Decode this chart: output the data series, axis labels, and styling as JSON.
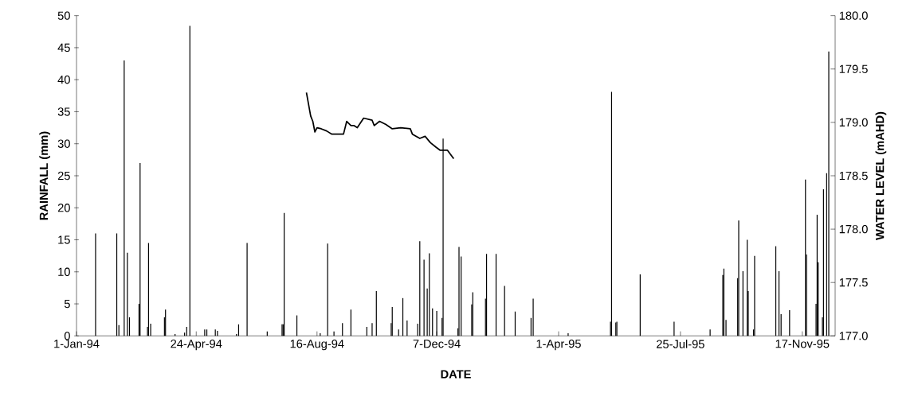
{
  "chart_data": {
    "type": "bar",
    "xlabel": "DATE",
    "ylabel": "RAINFALL (mm)",
    "y2label": "WATER LEVEL (mAHD)",
    "xlim": [
      "1994-01-01",
      "1995-12-18"
    ],
    "xticks": [
      {
        "value": "1994-01-01",
        "label": "1-Jan-94"
      },
      {
        "value": "1994-04-24",
        "label": "24-Apr-94"
      },
      {
        "value": "1994-08-16",
        "label": "16-Aug-94"
      },
      {
        "value": "1994-12-07",
        "label": "7-Dec-94"
      },
      {
        "value": "1995-04-01",
        "label": "1-Apr-95"
      },
      {
        "value": "1995-07-25",
        "label": "25-Jul-95"
      },
      {
        "value": "1995-11-17",
        "label": "17-Nov-95"
      }
    ],
    "ylim": [
      0,
      50
    ],
    "yticks": [
      0,
      5,
      10,
      15,
      20,
      25,
      30,
      35,
      40,
      45,
      50
    ],
    "y2lim": [
      177.0,
      180.0
    ],
    "y2ticks": [
      {
        "value": 177.0,
        "label": "177.0"
      },
      {
        "value": 177.5,
        "label": "177.5"
      },
      {
        "value": 178.0,
        "label": "178.0"
      },
      {
        "value": 178.5,
        "label": "178.5"
      },
      {
        "value": 179.0,
        "label": "179.0"
      },
      {
        "value": 179.5,
        "label": "179.5"
      },
      {
        "value": 180.0,
        "label": "180.0"
      }
    ],
    "grid": false,
    "series": [
      {
        "color": "#000000",
        "x": [
          "1994-01-19",
          "1994-02-08",
          "1994-02-10",
          "1994-02-15",
          "1994-02-18",
          "1994-02-20",
          "1994-03-01",
          "1994-03-02",
          "1994-03-09",
          "1994-03-10",
          "1994-03-12",
          "1994-03-25",
          "1994-03-26",
          "1994-04-04",
          "1994-04-13",
          "1994-04-15",
          "1994-04-18",
          "1994-05-02",
          "1994-05-04",
          "1994-05-12",
          "1994-05-14",
          "1994-06-01",
          "1994-06-03",
          "1994-06-11",
          "1994-06-30",
          "1994-07-14",
          "1994-07-15",
          "1994-07-16",
          "1994-07-28",
          "1994-08-19",
          "1994-08-26",
          "1994-09-01",
          "1994-09-09",
          "1994-09-17",
          "1994-10-02",
          "1994-10-07",
          "1994-10-11",
          "1994-10-25",
          "1994-10-26",
          "1994-11-01",
          "1994-11-05",
          "1994-11-09",
          "1994-11-19",
          "1994-11-21",
          "1994-11-25",
          "1994-11-28",
          "1994-11-30",
          "1994-12-03",
          "1994-12-07",
          "1994-12-12",
          "1994-12-13",
          "1994-12-27",
          "1994-12-28",
          "1994-12-30",
          "1995-01-09",
          "1995-01-10",
          "1995-01-22",
          "1995-01-23",
          "1995-02-01",
          "1995-02-09",
          "1995-02-19",
          "1995-03-06",
          "1995-03-08",
          "1995-04-10",
          "1995-05-20",
          "1995-05-21",
          "1995-05-25",
          "1995-05-26",
          "1995-06-17",
          "1995-07-19",
          "1995-08-22",
          "1995-09-03",
          "1995-09-04",
          "1995-09-06",
          "1995-09-17",
          "1995-09-18",
          "1995-09-22",
          "1995-09-26",
          "1995-09-27",
          "1995-10-02",
          "1995-10-03",
          "1995-10-23",
          "1995-10-26",
          "1995-10-28",
          "1995-11-05",
          "1995-11-20",
          "1995-11-21",
          "1995-11-30",
          "1995-12-01",
          "1995-12-02",
          "1995-12-06",
          "1995-12-07",
          "1995-12-10",
          "1995-12-12"
        ],
        "values": [
          16,
          16,
          1.7,
          43,
          13,
          2.9,
          5,
          27,
          1.4,
          14.5,
          1.9,
          2.9,
          4.1,
          0.3,
          0.5,
          1.4,
          48.4,
          1.0,
          1.0,
          1.0,
          0.8,
          0.3,
          1.8,
          14.5,
          0.7,
          1.8,
          1.8,
          19.2,
          3.2,
          0.4,
          14.4,
          0.7,
          2.0,
          4.1,
          1.4,
          2.0,
          7.0,
          2.0,
          4.5,
          1.0,
          5.9,
          2.4,
          1.9,
          14.8,
          11.9,
          7.4,
          12.9,
          4.3,
          3.9,
          2.8,
          30.8,
          1.2,
          13.9,
          12.4,
          4.9,
          6.8,
          5.8,
          12.8,
          12.8,
          7.8,
          3.8,
          2.8,
          5.8,
          0.4,
          2.2,
          38.1,
          2.1,
          2.2,
          9.6,
          2.2,
          1.0,
          9.5,
          10.5,
          2.5,
          9.0,
          18.0,
          10.1,
          15.0,
          7.0,
          1.0,
          12.5,
          14.0,
          10.1,
          3.4,
          4.0,
          24.4,
          12.7,
          5.0,
          18.9,
          11.5,
          2.9,
          22.9,
          25.4,
          44.4
        ]
      },
      {
        "type": "line",
        "axis": "y2",
        "color": "#000000",
        "x": [
          "1994-08-06",
          "1994-08-10",
          "1994-08-12",
          "1994-08-14",
          "1994-08-16",
          "1994-08-20",
          "1994-08-25",
          "1994-08-30",
          "1994-09-04",
          "1994-09-10",
          "1994-09-13",
          "1994-09-17",
          "1994-09-20",
          "1994-09-23",
          "1994-09-29",
          "1994-10-07",
          "1994-10-09",
          "1994-10-14",
          "1994-10-20",
          "1994-10-26",
          "1994-11-03",
          "1994-11-12",
          "1994-11-14",
          "1994-11-21",
          "1994-11-26",
          "1994-12-01",
          "1994-12-06",
          "1994-12-10",
          "1994-12-17",
          "1994-12-23"
        ],
        "values": [
          179.28,
          179.06,
          179.01,
          178.91,
          178.95,
          178.94,
          178.92,
          178.89,
          178.89,
          178.89,
          179.01,
          178.97,
          178.97,
          178.95,
          179.04,
          179.02,
          178.97,
          179.01,
          178.98,
          178.94,
          178.95,
          178.94,
          178.89,
          178.85,
          178.87,
          178.81,
          178.77,
          178.74,
          178.74,
          178.66
        ]
      }
    ]
  }
}
